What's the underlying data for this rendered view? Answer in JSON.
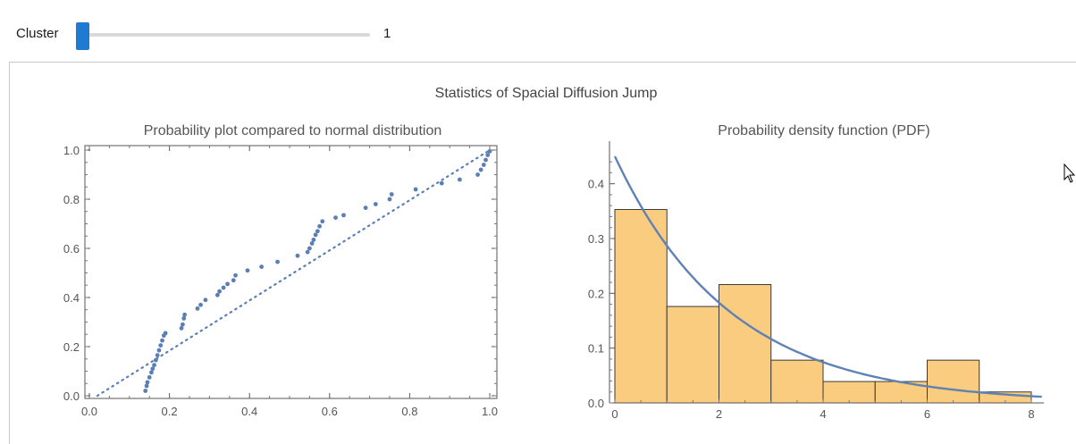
{
  "control": {
    "label": "Cluster",
    "value": "1",
    "slider_fraction": 0
  },
  "figure": {
    "title": "Statistics of Spacial Diffusion Jump"
  },
  "colors": {
    "points": "#5b7fb5",
    "bars_fill": "#f9cc7f",
    "bars_stroke": "#3a3a3a",
    "curve": "#5f82b5",
    "slider_thumb": "#1f7bd1"
  },
  "chart_data": [
    {
      "type": "scatter",
      "title": "Probability plot compared to normal distribution",
      "xlabel": "",
      "ylabel": "",
      "xlim": [
        0,
        1
      ],
      "ylim": [
        0,
        1
      ],
      "x_ticks": [
        "0.0",
        "0.2",
        "0.4",
        "0.6",
        "0.8",
        "1.0"
      ],
      "y_ticks": [
        "0.0",
        "0.2",
        "0.4",
        "0.6",
        "0.8",
        "1.0"
      ],
      "reference_line": {
        "style": "dotted",
        "from": [
          0.02,
          0.0
        ],
        "to": [
          1.0,
          1.0
        ]
      },
      "points": [
        [
          0.14,
          0.02
        ],
        [
          0.143,
          0.04
        ],
        [
          0.145,
          0.055
        ],
        [
          0.15,
          0.075
        ],
        [
          0.155,
          0.095
        ],
        [
          0.158,
          0.11
        ],
        [
          0.162,
          0.125
        ],
        [
          0.166,
          0.145
        ],
        [
          0.17,
          0.165
        ],
        [
          0.174,
          0.185
        ],
        [
          0.178,
          0.205
        ],
        [
          0.182,
          0.225
        ],
        [
          0.186,
          0.245
        ],
        [
          0.19,
          0.255
        ],
        [
          0.23,
          0.275
        ],
        [
          0.233,
          0.29
        ],
        [
          0.236,
          0.315
        ],
        [
          0.238,
          0.33
        ],
        [
          0.27,
          0.355
        ],
        [
          0.278,
          0.37
        ],
        [
          0.29,
          0.39
        ],
        [
          0.32,
          0.41
        ],
        [
          0.325,
          0.425
        ],
        [
          0.335,
          0.44
        ],
        [
          0.345,
          0.455
        ],
        [
          0.36,
          0.47
        ],
        [
          0.365,
          0.49
        ],
        [
          0.395,
          0.51
        ],
        [
          0.43,
          0.525
        ],
        [
          0.47,
          0.545
        ],
        [
          0.52,
          0.57
        ],
        [
          0.545,
          0.585
        ],
        [
          0.55,
          0.6
        ],
        [
          0.556,
          0.62
        ],
        [
          0.56,
          0.635
        ],
        [
          0.565,
          0.655
        ],
        [
          0.57,
          0.67
        ],
        [
          0.575,
          0.69
        ],
        [
          0.582,
          0.71
        ],
        [
          0.615,
          0.725
        ],
        [
          0.635,
          0.735
        ],
        [
          0.69,
          0.765
        ],
        [
          0.715,
          0.78
        ],
        [
          0.75,
          0.8
        ],
        [
          0.755,
          0.82
        ],
        [
          0.815,
          0.84
        ],
        [
          0.88,
          0.865
        ],
        [
          0.925,
          0.88
        ],
        [
          0.97,
          0.9
        ],
        [
          0.978,
          0.92
        ],
        [
          0.985,
          0.94
        ],
        [
          0.99,
          0.96
        ],
        [
          0.995,
          0.98
        ],
        [
          1.0,
          0.995
        ]
      ]
    },
    {
      "type": "bar",
      "title": "Probability density function (PDF)",
      "xlabel": "",
      "ylabel": "",
      "xlim": [
        0,
        8
      ],
      "ylim": [
        0,
        0.45
      ],
      "x_ticks": [
        "0",
        "2",
        "4",
        "6",
        "8"
      ],
      "y_ticks": [
        "0.0",
        "0.1",
        "0.2",
        "0.3",
        "0.4"
      ],
      "bins": [
        {
          "x0": 0,
          "x1": 1,
          "value": 0.353
        },
        {
          "x0": 1,
          "x1": 2,
          "value": 0.176
        },
        {
          "x0": 2,
          "x1": 3,
          "value": 0.216
        },
        {
          "x0": 3,
          "x1": 4,
          "value": 0.078
        },
        {
          "x0": 4,
          "x1": 5,
          "value": 0.039
        },
        {
          "x0": 5,
          "x1": 6,
          "value": 0.039
        },
        {
          "x0": 6,
          "x1": 7,
          "value": 0.078
        },
        {
          "x0": 7,
          "x1": 8,
          "value": 0.02
        }
      ],
      "fit_curve": {
        "type": "exponential",
        "lambda": 0.45
      }
    }
  ]
}
